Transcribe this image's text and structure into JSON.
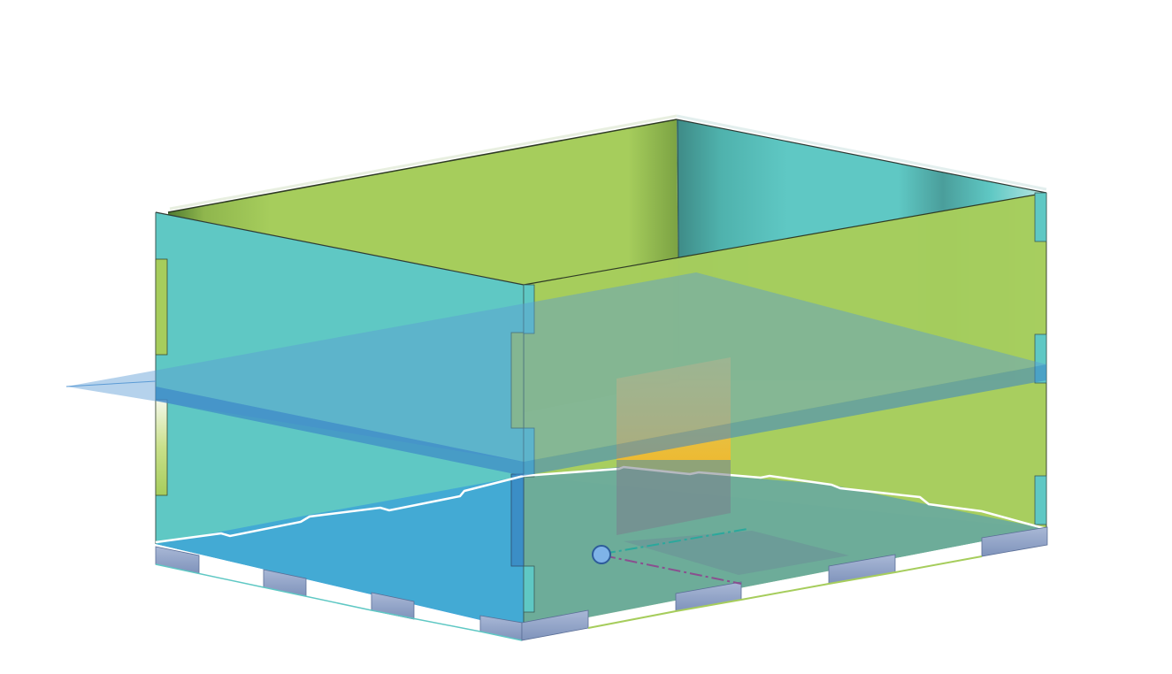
{
  "viewport": {
    "background": "#ffffff"
  },
  "model": {
    "panels": [
      {
        "name": "left-wall",
        "color": "#5fc8c4"
      },
      {
        "name": "back-wall",
        "color": "#a6cd5c"
      },
      {
        "name": "right-wall",
        "color": "#5fc8c4"
      },
      {
        "name": "front-wall",
        "color": "#a6cd5c"
      },
      {
        "name": "bottom-panel",
        "color": "#3096e0"
      }
    ],
    "section_plane": {
      "color": "#5b9bd5",
      "opacity": 0.55
    },
    "highlight_face": {
      "color": "#f5b82e"
    },
    "origin_point": {
      "color": "#7fb3e8"
    },
    "axes": [
      {
        "name": "x-axis",
        "color": "#2ba89c"
      },
      {
        "name": "y-axis",
        "color": "#8a4f8f"
      }
    ]
  }
}
